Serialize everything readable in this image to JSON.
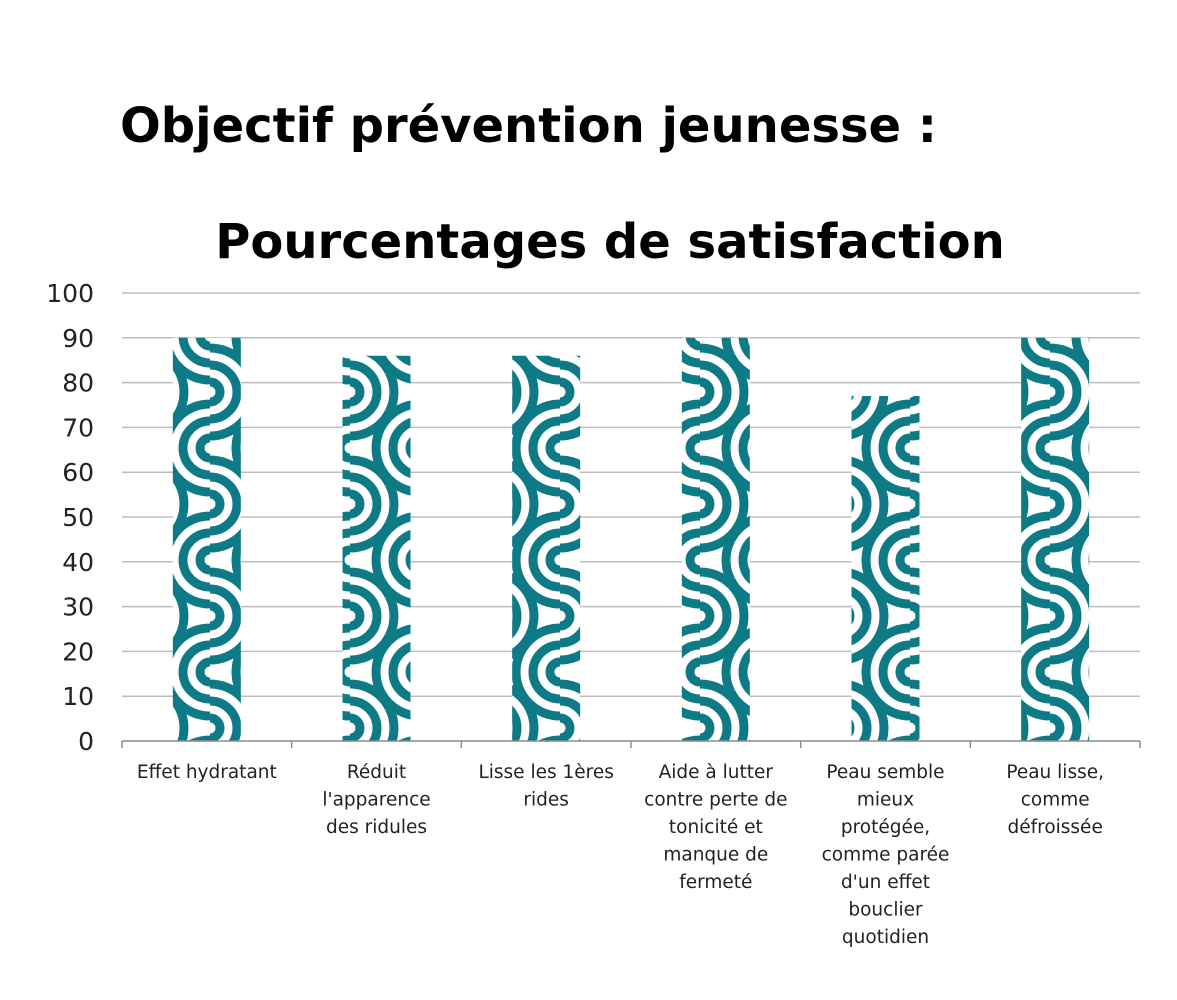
{
  "chart_data": {
    "type": "bar",
    "title_lines": [
      "Objectif prévention jeunesse :",
      "Pourcentages de satisfaction"
    ],
    "xlabel": "",
    "ylabel": "",
    "ylim": [
      0,
      100
    ],
    "yticks": [
      0,
      10,
      20,
      30,
      40,
      50,
      60,
      70,
      80,
      90,
      100
    ],
    "grid": true,
    "legend": "none",
    "categories": [
      [
        "Effet hydratant"
      ],
      [
        "Réduit",
        "l'apparence",
        "des ridules"
      ],
      [
        "Lisse les 1ères",
        "rides"
      ],
      [
        "Aide à lutter",
        "contre perte de",
        "tonicité et",
        "manque de",
        "fermeté"
      ],
      [
        "Peau semble",
        "mieux",
        "protégée,",
        "comme parée",
        "d'un effet",
        "bouclier",
        "quotidien"
      ],
      [
        "Peau lisse,",
        "comme",
        "défroissée"
      ]
    ],
    "values": [
      90,
      86,
      86,
      90,
      77,
      90
    ],
    "colors": {
      "bar": "#0e7a86",
      "grid": "#bdbdbd",
      "axis": "#8c8c8c",
      "background": "#ffffff"
    }
  }
}
